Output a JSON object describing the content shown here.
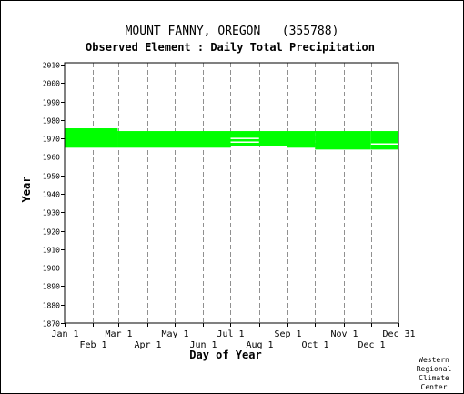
{
  "chart_data": {
    "type": "bar",
    "title": "MOUNT FANNY, OREGON   (355788)",
    "subtitle": "Observed Element : Daily Total Precipitation",
    "xlabel": "Day of Year",
    "ylabel": "Year",
    "xlim": [
      1,
      365
    ],
    "ylim": [
      1870,
      2011
    ],
    "x_ticks_top_row": [
      {
        "label": "Jan 1",
        "day": 1
      },
      {
        "label": "Mar 1",
        "day": 60
      },
      {
        "label": "May 1",
        "day": 121
      },
      {
        "label": "Jul 1",
        "day": 182
      },
      {
        "label": "Sep 1",
        "day": 244
      },
      {
        "label": "Nov 1",
        "day": 305
      },
      {
        "label": "Dec 31",
        "day": 365
      }
    ],
    "x_ticks_bottom_row": [
      {
        "label": "Feb 1",
        "day": 32
      },
      {
        "label": "Apr 1",
        "day": 91
      },
      {
        "label": "Jun 1",
        "day": 152
      },
      {
        "label": "Aug 1",
        "day": 213
      },
      {
        "label": "Oct 1",
        "day": 274
      },
      {
        "label": "Dec 1",
        "day": 335
      }
    ],
    "y_ticks": [
      1870,
      1880,
      1890,
      1900,
      1910,
      1920,
      1930,
      1940,
      1950,
      1960,
      1970,
      1980,
      1990,
      2000,
      2010
    ],
    "grid": "dashed vertical lines at month boundaries",
    "series_color": "#00ff00",
    "data_spans": [
      {
        "from_day": 1,
        "to_day": 59,
        "from_year": 1965,
        "to_year": 1975.5
      },
      {
        "from_day": 59,
        "to_day": 182,
        "from_year": 1965,
        "to_year": 1974
      },
      {
        "from_day": 182,
        "to_day": 244,
        "from_year": 1966,
        "to_year": 1974
      },
      {
        "from_day": 244,
        "to_day": 274,
        "from_year": 1965,
        "to_year": 1974
      },
      {
        "from_day": 274,
        "to_day": 335,
        "from_year": 1964,
        "to_year": 1974
      },
      {
        "from_day": 335,
        "to_day": 365,
        "from_year": 1964,
        "to_year": 1974
      }
    ],
    "gaps": [
      {
        "from_day": 182,
        "to_day": 213,
        "year": 1968
      },
      {
        "from_day": 182,
        "to_day": 213,
        "year": 1970
      },
      {
        "from_day": 335,
        "to_day": 365,
        "year": 1967
      }
    ]
  },
  "credit": {
    "line1": "Western",
    "line2": "Regional",
    "line3": "Climate",
    "line4": "Center"
  }
}
